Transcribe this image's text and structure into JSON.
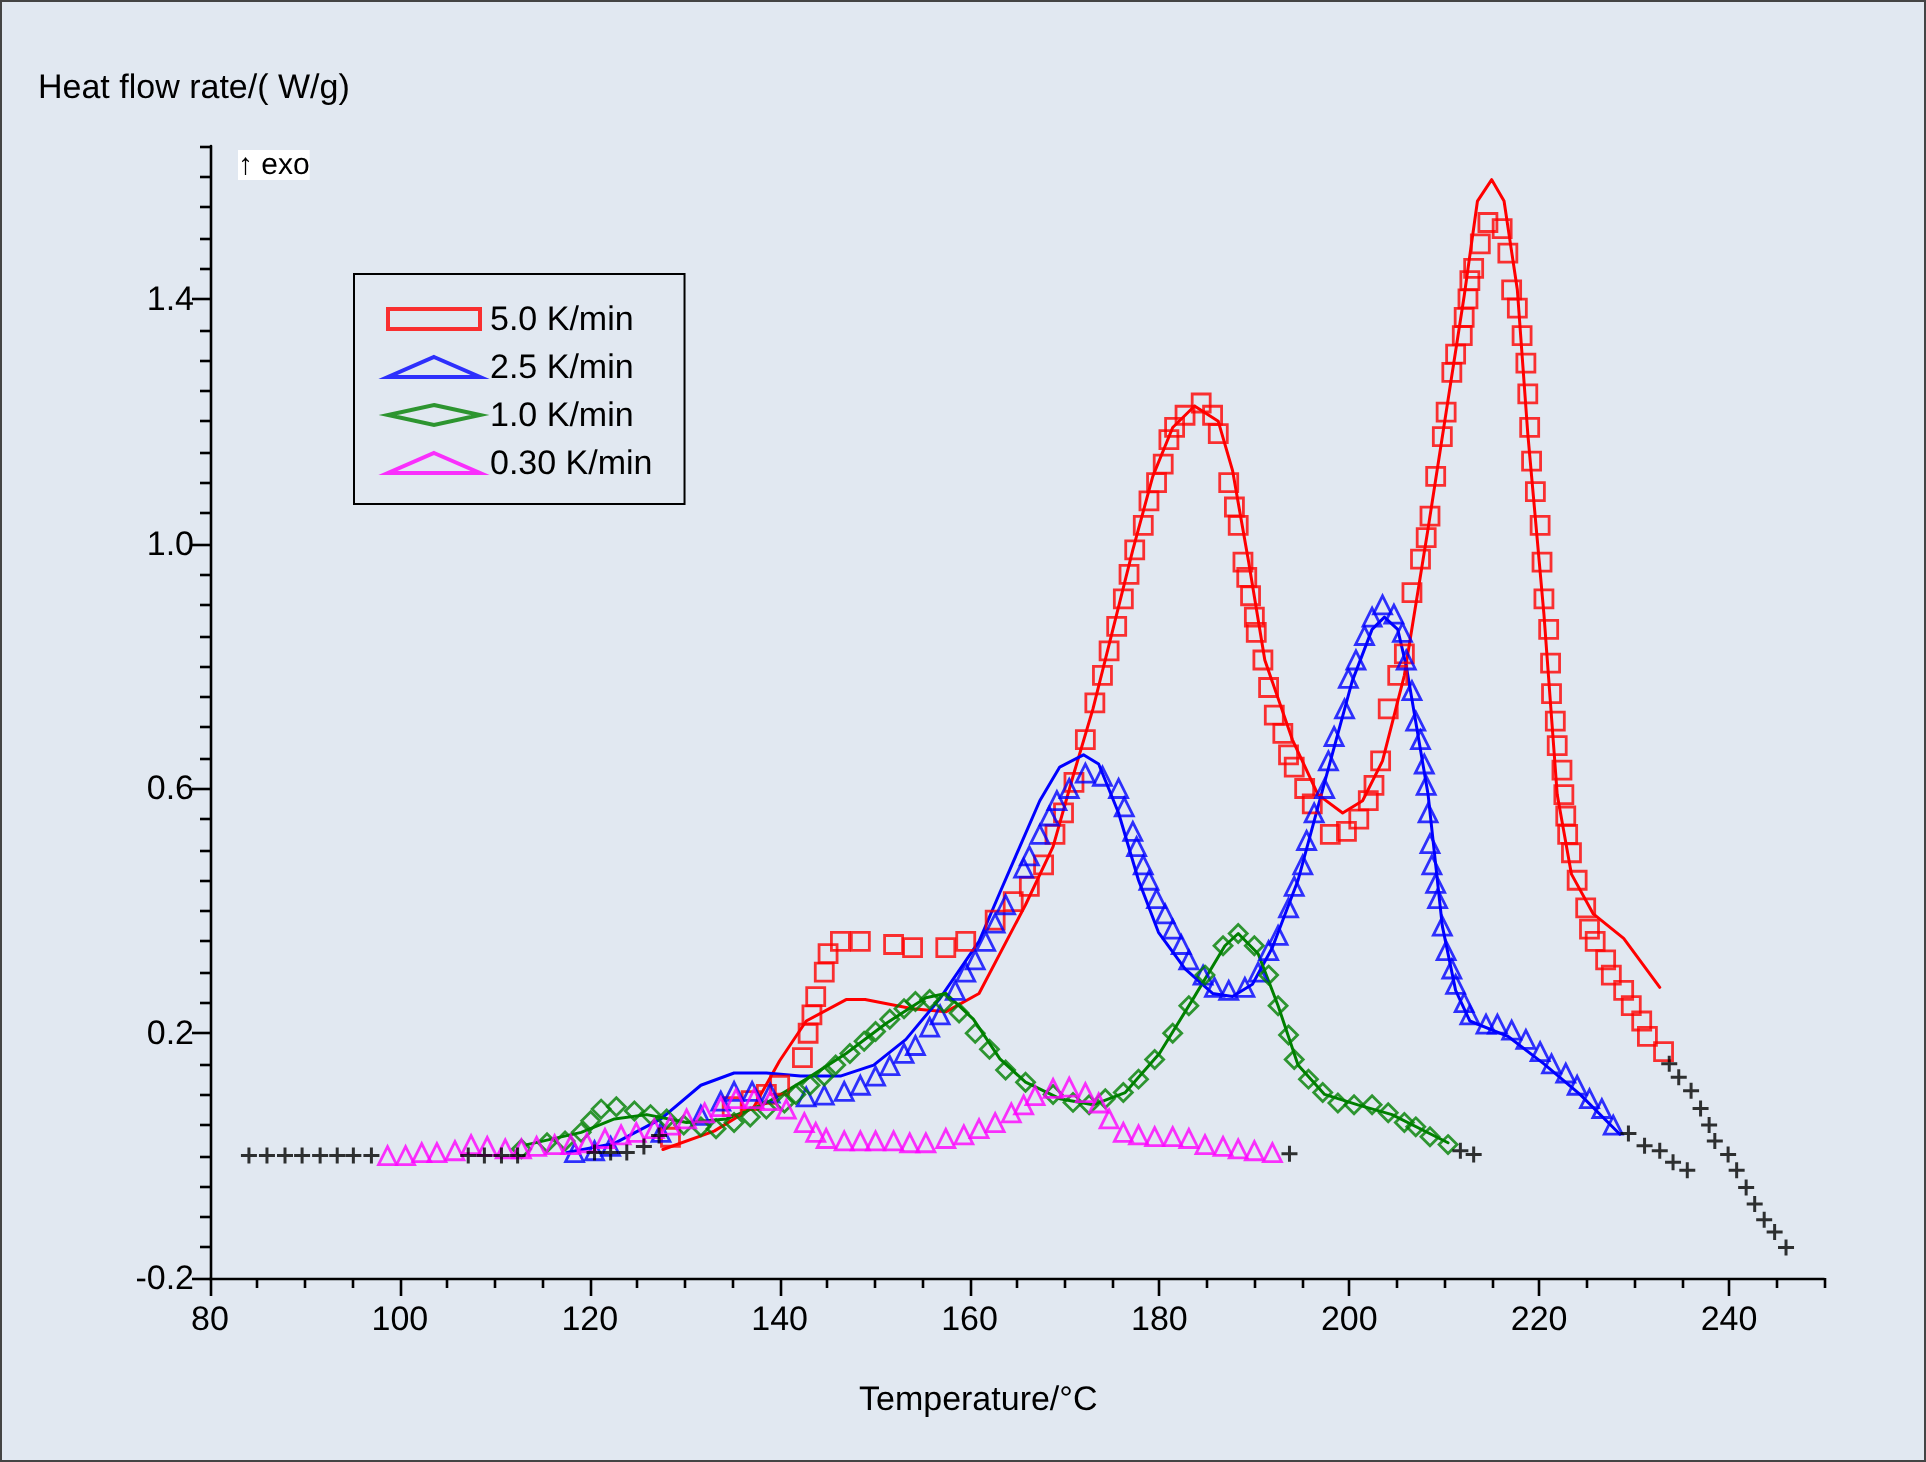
{
  "chart_data": {
    "type": "scatter",
    "xlabel": "Temperature/°C",
    "ylabel": "Heat flow rate/( W/g)",
    "annotations": [
      "↑ exo"
    ],
    "xlim": [
      80,
      250
    ],
    "ylim": [
      -0.2,
      1.65
    ],
    "xticks": [
      80,
      {
        "value": 85,
        "label": null
      },
      {
        "value": 90,
        "label": null
      },
      {
        "value": 95,
        "label": null
      },
      100,
      {
        "value": 105,
        "label": null
      },
      {
        "value": 110,
        "label": null
      },
      {
        "value": 115,
        "label": null
      },
      120,
      {
        "value": 125,
        "label": null
      },
      {
        "value": 130,
        "label": null
      },
      {
        "value": 135,
        "label": null
      },
      140,
      {
        "value": 145,
        "label": null
      },
      {
        "value": 150,
        "label": null
      },
      {
        "value": 155,
        "label": null
      },
      160,
      {
        "value": 165,
        "label": null
      },
      {
        "value": 170,
        "label": null
      },
      {
        "value": 175,
        "label": null
      },
      180,
      {
        "value": 185,
        "label": null
      },
      {
        "value": 190,
        "label": null
      },
      {
        "value": 195,
        "label": null
      },
      200,
      {
        "value": 205,
        "label": null
      },
      {
        "value": 210,
        "label": null
      },
      {
        "value": 215,
        "label": null
      },
      220,
      {
        "value": 225,
        "label": null
      },
      {
        "value": 230,
        "label": null
      },
      {
        "value": 235,
        "label": null
      },
      240,
      {
        "value": 245,
        "label": null
      },
      {
        "value": 250,
        "label": null
      }
    ],
    "yticks": [
      -0.2,
      {
        "value": -0.15,
        "label": null
      },
      {
        "value": -0.1,
        "label": null
      },
      {
        "value": -0.05,
        "label": null
      },
      {
        "value": 0,
        "label": null
      },
      {
        "value": 0.05,
        "label": null
      },
      {
        "value": 0.1,
        "label": null
      },
      {
        "value": 0.15,
        "label": null
      },
      0.2,
      {
        "value": 0.25,
        "label": null
      },
      {
        "value": 0.3,
        "label": null
      },
      {
        "value": 0.35,
        "label": null
      },
      {
        "value": 0.4,
        "label": null
      },
      {
        "value": 0.45,
        "label": null
      },
      {
        "value": 0.5,
        "label": null
      },
      {
        "value": 0.55,
        "label": null
      },
      0.6,
      {
        "value": 0.65,
        "label": null
      },
      {
        "value": 0.7,
        "label": null
      },
      {
        "value": 0.75,
        "label": null
      },
      {
        "value": 0.8,
        "label": null
      },
      {
        "value": 0.85,
        "label": null
      },
      {
        "value": 0.9,
        "label": null
      },
      {
        "value": 0.95,
        "label": null
      },
      {
        "value": 1.0,
        "label": "1.0"
      },
      {
        "value": 1.05,
        "label": null
      },
      {
        "value": 1.1,
        "label": null
      },
      {
        "value": 1.15,
        "label": null
      },
      {
        "value": 1.2,
        "label": null
      },
      {
        "value": 1.25,
        "label": null
      },
      {
        "value": 1.3,
        "label": null
      },
      {
        "value": 1.35,
        "label": null
      },
      1.4,
      {
        "value": 1.45,
        "label": null
      },
      {
        "value": 1.5,
        "label": null
      },
      {
        "value": 1.55,
        "label": null
      },
      {
        "value": 1.6,
        "label": null
      },
      {
        "value": 1.65,
        "label": null
      }
    ],
    "grid": false,
    "legend": "top left",
    "series": [
      {
        "name": "5.0 K/min",
        "color": "#ff0000",
        "marker": "square",
        "x": [
          128.5,
          135,
          137,
          138.6,
          140,
          142.4,
          143,
          143.4,
          143.8,
          144.7,
          145.1,
          146.4,
          148.5,
          152,
          154,
          157.5,
          159.6,
          162.7,
          164.6,
          166.3,
          167.8,
          169,
          169.9,
          171,
          172.2,
          173.2,
          174,
          174.7,
          175.5,
          176.2,
          176.8,
          177.4,
          178.3,
          178.9,
          179.7,
          180.4,
          181,
          181.6,
          182.7,
          184.4,
          185.6,
          186.2,
          187.3,
          187.9,
          188.3,
          188.8,
          189.2,
          189.6,
          190,
          190.2,
          190.9,
          191.5,
          192.1,
          193,
          193.6,
          194.2,
          195.3,
          196.1,
          198,
          199.7,
          201,
          202,
          202.6,
          203.3,
          204.1,
          205.1,
          205.8,
          206.6,
          207.5,
          208.1,
          208.5,
          209.1,
          209.8,
          210.2,
          210.8,
          211.2,
          211.9,
          212.1,
          212.5,
          212.7,
          213.1,
          213.8,
          214.6,
          216.1,
          216.7,
          217.1,
          217.7,
          218.2,
          218.6,
          218.8,
          219,
          219.2,
          219.6,
          220.1,
          220.3,
          220.5,
          221,
          221.2,
          221.3,
          221.7,
          221.9,
          222.4,
          222.6,
          222.8,
          223,
          223.4,
          224,
          224.9,
          225.3,
          225.9,
          227,
          227.6,
          228.9,
          229.7,
          230.8,
          231.4,
          233.1
        ],
        "values": [
          0.03,
          0.08,
          0.09,
          0.1,
          0.115,
          0.16,
          0.2,
          0.23,
          0.26,
          0.3,
          0.33,
          0.35,
          0.35,
          0.345,
          0.34,
          0.34,
          0.35,
          0.385,
          0.415,
          0.44,
          0.475,
          0.525,
          0.56,
          0.61,
          0.68,
          0.74,
          0.785,
          0.825,
          0.865,
          0.91,
          0.95,
          0.99,
          1.03,
          1.07,
          1.1,
          1.13,
          1.17,
          1.19,
          1.21,
          1.23,
          1.21,
          1.18,
          1.1,
          1.06,
          1.03,
          0.97,
          0.945,
          0.915,
          0.88,
          0.855,
          0.81,
          0.765,
          0.72,
          0.69,
          0.655,
          0.635,
          0.6,
          0.575,
          0.525,
          0.53,
          0.55,
          0.58,
          0.605,
          0.645,
          0.73,
          0.785,
          0.82,
          0.92,
          0.975,
          1.01,
          1.045,
          1.11,
          1.175,
          1.215,
          1.28,
          1.31,
          1.34,
          1.37,
          1.4,
          1.43,
          1.45,
          1.49,
          1.525,
          1.515,
          1.475,
          1.415,
          1.385,
          1.34,
          1.295,
          1.245,
          1.19,
          1.135,
          1.085,
          1.03,
          0.97,
          0.91,
          0.86,
          0.805,
          0.755,
          0.71,
          0.67,
          0.63,
          0.59,
          0.555,
          0.525,
          0.495,
          0.45,
          0.405,
          0.37,
          0.35,
          0.32,
          0.295,
          0.27,
          0.245,
          0.22,
          0.195,
          0.17
        ]
      },
      {
        "name": "2.5 K/min",
        "color": "#0000ff",
        "marker": "triangle",
        "x": [
          118.4,
          120.5,
          122.2,
          127.5,
          131.7,
          133.8,
          135.2,
          137.1,
          139,
          142.8,
          144.7,
          146.8,
          148.5,
          150.1,
          151.6,
          153.1,
          154.3,
          155.8,
          156.9,
          158.5,
          159.6,
          160.6,
          161.7,
          162.7,
          163.8,
          165.7,
          166.3,
          167.4,
          168.4,
          169.2,
          170.5,
          172.2,
          174,
          175.7,
          176.3,
          177.2,
          177.6,
          178.3,
          178.9,
          179.7,
          180.6,
          181.4,
          182.3,
          183.1,
          184.6,
          185.8,
          187.3,
          189,
          190.4,
          191.5,
          192.5,
          193.6,
          194.2,
          195.1,
          195.5,
          196.3,
          197.4,
          197.8,
          198.4,
          199.5,
          199.9,
          200.7,
          201.6,
          202.4,
          203.5,
          204.7,
          205.6,
          206,
          206.6,
          207,
          207.5,
          207.9,
          208.1,
          208.3,
          208.5,
          208.7,
          209.1,
          209.3,
          209.8,
          210.2,
          210.8,
          211.2,
          212.1,
          212.7,
          214.4,
          215.6,
          217.1,
          218.6,
          220.1,
          221.3,
          222.8,
          224,
          225.3,
          226.6,
          227.8
        ],
        "values": [
          0.005,
          0.008,
          0.015,
          0.038,
          0.066,
          0.089,
          0.105,
          0.105,
          0.102,
          0.096,
          0.099,
          0.105,
          0.115,
          0.13,
          0.147,
          0.167,
          0.18,
          0.21,
          0.23,
          0.27,
          0.3,
          0.32,
          0.35,
          0.38,
          0.41,
          0.47,
          0.49,
          0.525,
          0.555,
          0.58,
          0.6,
          0.625,
          0.62,
          0.6,
          0.57,
          0.53,
          0.505,
          0.475,
          0.45,
          0.42,
          0.395,
          0.37,
          0.345,
          0.32,
          0.295,
          0.275,
          0.27,
          0.275,
          0.3,
          0.335,
          0.36,
          0.405,
          0.44,
          0.475,
          0.515,
          0.56,
          0.6,
          0.645,
          0.685,
          0.73,
          0.78,
          0.81,
          0.85,
          0.88,
          0.9,
          0.885,
          0.855,
          0.81,
          0.76,
          0.71,
          0.68,
          0.64,
          0.605,
          0.56,
          0.51,
          0.475,
          0.445,
          0.42,
          0.375,
          0.335,
          0.305,
          0.28,
          0.25,
          0.23,
          0.215,
          0.215,
          0.205,
          0.19,
          0.17,
          0.15,
          0.135,
          0.115,
          0.093,
          0.077,
          0.05
        ]
      },
      {
        "name": "1.0 K/min",
        "color": "#008000",
        "marker": "diamond",
        "x": [
          112.8,
          115.5,
          117.4,
          119.1,
          120.1,
          121.2,
          122.8,
          124.7,
          126.4,
          128.1,
          129.9,
          131.7,
          133.3,
          135.2,
          136.9,
          138.6,
          140.5,
          141.7,
          143.2,
          144.7,
          145.9,
          147.4,
          148.9,
          150.1,
          151.6,
          153.1,
          154.3,
          155.8,
          157.3,
          158.9,
          160.6,
          162.1,
          163.8,
          165.9,
          168.8,
          170.9,
          172.6,
          174.3,
          176.2,
          177.8,
          179.5,
          181.4,
          183.1,
          184.8,
          186.7,
          188.3,
          190,
          191.5,
          192.5,
          193.6,
          194.2,
          195.7,
          197.2,
          198.8,
          200.5,
          202.4,
          204.1,
          205.8,
          207,
          208.5,
          210.4
        ],
        "values": [
          0.011,
          0.021,
          0.024,
          0.038,
          0.057,
          0.076,
          0.08,
          0.073,
          0.067,
          0.06,
          0.05,
          0.047,
          0.044,
          0.054,
          0.063,
          0.076,
          0.086,
          0.1,
          0.115,
          0.13,
          0.148,
          0.167,
          0.187,
          0.203,
          0.223,
          0.24,
          0.252,
          0.255,
          0.25,
          0.233,
          0.2,
          0.174,
          0.14,
          0.12,
          0.1,
          0.087,
          0.083,
          0.093,
          0.103,
          0.125,
          0.157,
          0.2,
          0.245,
          0.295,
          0.343,
          0.363,
          0.343,
          0.295,
          0.245,
          0.197,
          0.157,
          0.125,
          0.103,
          0.086,
          0.083,
          0.083,
          0.07,
          0.054,
          0.047,
          0.031,
          0.018
        ]
      },
      {
        "name": "0.30 K/min",
        "color": "#ff00ff",
        "marker": "triangle",
        "x": [
          98.7,
          100.6,
          102.3,
          103.9,
          105.8,
          107.5,
          109.2,
          111.1,
          112.8,
          114.4,
          116.3,
          118,
          119.7,
          121.6,
          123.3,
          124.9,
          126.8,
          128.5,
          130.2,
          132.1,
          133.8,
          135.4,
          137.3,
          139,
          140.7,
          142.6,
          143.8,
          144.9,
          146.8,
          148.5,
          150.1,
          152,
          153.7,
          155.4,
          157.5,
          159.4,
          161,
          162.7,
          164.4,
          165.7,
          166.9,
          168.8,
          170.5,
          172.2,
          173.6,
          174.7,
          176.2,
          177.8,
          179.5,
          181.4,
          183.1,
          184.8,
          186.7,
          188.3,
          190,
          191.9
        ],
        "values": [
          0,
          0,
          0.005,
          0.005,
          0.008,
          0.018,
          0.015,
          0.011,
          0.011,
          0.015,
          0.018,
          0.018,
          0.021,
          0.028,
          0.034,
          0.038,
          0.044,
          0.05,
          0.06,
          0.07,
          0.08,
          0.093,
          0.093,
          0.09,
          0.076,
          0.054,
          0.038,
          0.028,
          0.024,
          0.024,
          0.024,
          0.024,
          0.021,
          0.021,
          0.028,
          0.034,
          0.044,
          0.054,
          0.07,
          0.083,
          0.098,
          0.11,
          0.112,
          0.103,
          0.086,
          0.06,
          0.038,
          0.034,
          0.031,
          0.031,
          0.028,
          0.018,
          0.015,
          0.011,
          0.008,
          0.005
        ]
      },
      {
        "type": "line",
        "color": "#ff0000",
        "marker": "none",
        "x": [
          127.7,
          133.1,
          137.3,
          140,
          142.8,
          147,
          149,
          154,
          157.5,
          161,
          165.9,
          168.8,
          170.9,
          173,
          175.1,
          177.2,
          179.3,
          181.4,
          183.7,
          186.2,
          187.7,
          189.4,
          191.1,
          194,
          196.7,
          199.3,
          201.4,
          203.5,
          205.8,
          208.3,
          210.2,
          212.1,
          213.5,
          215,
          216.3,
          217.7,
          218.8,
          220.5,
          221.9,
          223.4,
          225.7,
          228.9,
          232.7
        ],
        "values": [
          0.01,
          0.04,
          0.08,
          0.155,
          0.22,
          0.255,
          0.255,
          0.24,
          0.235,
          0.265,
          0.41,
          0.505,
          0.62,
          0.73,
          0.86,
          0.99,
          1.11,
          1.19,
          1.225,
          1.2,
          1.12,
          0.97,
          0.81,
          0.68,
          0.59,
          0.56,
          0.58,
          0.645,
          0.785,
          1.025,
          1.215,
          1.405,
          1.56,
          1.595,
          1.56,
          1.415,
          1.18,
          0.885,
          0.59,
          0.46,
          0.395,
          0.355,
          0.275
        ]
      },
      {
        "type": "line",
        "color": "#0000ff",
        "marker": "none",
        "x": [
          117.6,
          122.6,
          127.5,
          131.7,
          135.2,
          138.6,
          142.2,
          146.4,
          149.9,
          153.3,
          156.8,
          161,
          163.2,
          165.3,
          167.4,
          169.5,
          172,
          173.6,
          175.7,
          177.8,
          179.9,
          182.7,
          185.6,
          187.7,
          189.8,
          191.9,
          194.6,
          197.4,
          200.3,
          202.4,
          203.7,
          205.1,
          206,
          208.3,
          209.8,
          211.2,
          212.7,
          216.7,
          220.5,
          224.3,
          228.5
        ],
        "values": [
          0.005,
          0.02,
          0.06,
          0.115,
          0.135,
          0.135,
          0.13,
          0.13,
          0.148,
          0.19,
          0.255,
          0.35,
          0.43,
          0.505,
          0.58,
          0.635,
          0.655,
          0.64,
          0.56,
          0.45,
          0.365,
          0.305,
          0.265,
          0.26,
          0.28,
          0.34,
          0.45,
          0.61,
          0.775,
          0.86,
          0.88,
          0.86,
          0.8,
          0.59,
          0.375,
          0.27,
          0.22,
          0.195,
          0.15,
          0.1,
          0.035
        ]
      },
      {
        "type": "line",
        "color": "#008000",
        "marker": "none",
        "x": [
          113.4,
          119.1,
          122.6,
          126,
          130.2,
          134.4,
          138.6,
          142.8,
          147,
          151.2,
          155.4,
          157.5,
          160.4,
          163.2,
          165.9,
          169.5,
          173,
          176.4,
          180,
          183.5,
          186.9,
          188.3,
          190.4,
          192.5,
          194.6,
          197.4,
          200.9,
          204.5,
          210.4
        ],
        "values": [
          0.018,
          0.038,
          0.06,
          0.067,
          0.054,
          0.06,
          0.086,
          0.125,
          0.167,
          0.216,
          0.258,
          0.265,
          0.223,
          0.158,
          0.12,
          0.093,
          0.083,
          0.103,
          0.167,
          0.255,
          0.343,
          0.363,
          0.33,
          0.245,
          0.148,
          0.1,
          0.083,
          0.067,
          0.021
        ]
      },
      {
        "color": "#000000",
        "marker": "cross",
        "x": [
          84.1,
          86,
          87.9,
          89.7,
          91.6,
          93.4,
          95.1,
          97,
          107.2,
          108.9,
          110.7,
          112.4,
          120.5,
          122.2,
          123.9,
          125.7,
          127.3,
          193.7,
          211.7,
          213.1,
          229.4,
          231.1,
          232.7,
          234.1,
          235.6,
          233.7,
          234.7,
          236,
          237,
          237.9,
          238.5,
          239.9,
          240.8,
          241.8,
          242.7,
          243.7,
          244.8,
          246
        ],
        "values": [
          0,
          0,
          0,
          0,
          0,
          0,
          0,
          0,
          0,
          0,
          0,
          0,
          0.005,
          0.005,
          0.005,
          0.015,
          0.033,
          0.003,
          0.008,
          0.002,
          0.036,
          0.016,
          0.008,
          -0.011,
          -0.024,
          0.15,
          0.128,
          0.106,
          0.077,
          0.05,
          0.024,
          0.002,
          -0.024,
          -0.052,
          -0.079,
          -0.105,
          -0.125,
          -0.15
        ]
      }
    ]
  }
}
